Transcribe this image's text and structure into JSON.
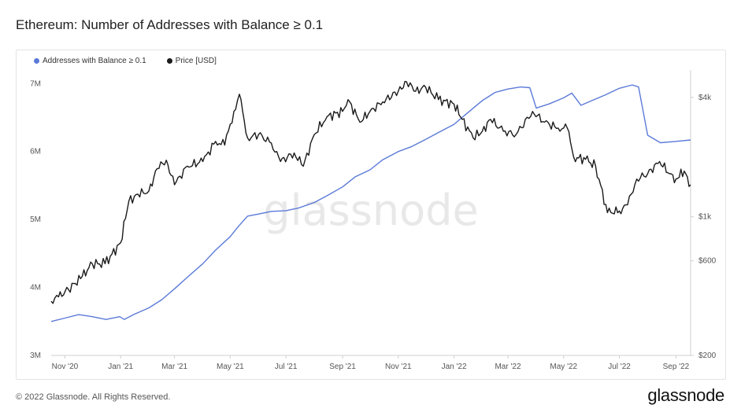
{
  "page": {
    "title": "Ethereum: Number of Addresses with Balance ≥ 0.1",
    "copyright": "© 2022 Glassnode. All Rights Reserved.",
    "brand": "glassnode",
    "watermark": "glassnode"
  },
  "colors": {
    "addresses": "#5b7ad8",
    "price": "#1b1b1b"
  },
  "chart_data": {
    "type": "line",
    "title": "Ethereum: Number of Addresses with Balance ≥ 0.1",
    "legend_placement": "top-left",
    "grid": false,
    "x_ticks": [
      "Nov '20",
      "Jan '21",
      "Mar '21",
      "May '21",
      "Jul '21",
      "Sep '21",
      "Nov '21",
      "Jan '22",
      "Mar '22",
      "May '22",
      "Jul '22",
      "Sep '22"
    ],
    "xlim": [
      "2020-10-17",
      "2022-09-17"
    ],
    "y_left": {
      "ticks": [
        "3M",
        "4M",
        "5M",
        "6M",
        "7M"
      ],
      "lim": [
        3000000,
        7200000
      ]
    },
    "y_right": {
      "scale": "log",
      "ticks": [
        "$200",
        "$600",
        "$1k",
        "$4k"
      ],
      "lim": [
        200,
        5500
      ]
    },
    "series": [
      {
        "name": "Addresses with Balance ≥ 0.1",
        "axis": "left",
        "x": [
          "2020-10-17",
          "2020-11-01",
          "2020-11-16",
          "2020-12-01",
          "2020-12-16",
          "2020-12-31",
          "2021-01-05",
          "2021-01-15",
          "2021-02-01",
          "2021-02-15",
          "2021-03-01",
          "2021-03-15",
          "2021-04-01",
          "2021-04-15",
          "2021-05-01",
          "2021-05-10",
          "2021-05-20",
          "2021-06-01",
          "2021-06-15",
          "2021-07-01",
          "2021-07-15",
          "2021-08-01",
          "2021-08-15",
          "2021-09-01",
          "2021-09-15",
          "2021-10-01",
          "2021-10-15",
          "2021-11-01",
          "2021-11-15",
          "2021-12-01",
          "2021-12-15",
          "2022-01-01",
          "2022-01-15",
          "2022-02-01",
          "2022-02-15",
          "2022-03-01",
          "2022-03-15",
          "2022-03-25",
          "2022-04-01",
          "2022-04-15",
          "2022-05-01",
          "2022-05-10",
          "2022-05-20",
          "2022-06-01",
          "2022-06-15",
          "2022-07-01",
          "2022-07-15",
          "2022-07-22",
          "2022-08-01",
          "2022-08-15",
          "2022-09-01",
          "2022-09-17"
        ],
        "values": [
          3500000,
          3550000,
          3600000,
          3570000,
          3530000,
          3570000,
          3530000,
          3600000,
          3700000,
          3820000,
          3980000,
          4150000,
          4350000,
          4550000,
          4750000,
          4900000,
          5050000,
          5080000,
          5120000,
          5130000,
          5170000,
          5250000,
          5350000,
          5480000,
          5630000,
          5730000,
          5880000,
          6000000,
          6070000,
          6180000,
          6280000,
          6400000,
          6560000,
          6750000,
          6870000,
          6920000,
          6950000,
          6940000,
          6640000,
          6700000,
          6790000,
          6860000,
          6680000,
          6750000,
          6830000,
          6930000,
          6980000,
          6950000,
          6240000,
          6130000,
          6150000,
          6170000
        ]
      },
      {
        "name": "Price [USD]",
        "axis": "right",
        "x": [
          "2020-10-17",
          "2020-10-25",
          "2020-11-05",
          "2020-11-20",
          "2020-12-01",
          "2020-12-15",
          "2021-01-01",
          "2021-01-10",
          "2021-01-20",
          "2021-02-01",
          "2021-02-10",
          "2021-02-20",
          "2021-03-01",
          "2021-03-15",
          "2021-04-01",
          "2021-04-15",
          "2021-04-25",
          "2021-05-05",
          "2021-05-11",
          "2021-05-20",
          "2021-06-01",
          "2021-06-15",
          "2021-06-25",
          "2021-07-10",
          "2021-07-20",
          "2021-08-01",
          "2021-08-15",
          "2021-09-01",
          "2021-09-07",
          "2021-09-20",
          "2021-10-01",
          "2021-10-15",
          "2021-11-01",
          "2021-11-10",
          "2021-11-20",
          "2021-12-01",
          "2021-12-15",
          "2022-01-01",
          "2022-01-10",
          "2022-01-22",
          "2022-02-01",
          "2022-02-10",
          "2022-02-24",
          "2022-03-10",
          "2022-03-28",
          "2022-04-10",
          "2022-04-25",
          "2022-05-05",
          "2022-05-12",
          "2022-05-25",
          "2022-06-05",
          "2022-06-18",
          "2022-07-01",
          "2022-07-10",
          "2022-07-20",
          "2022-08-01",
          "2022-08-14",
          "2022-08-25",
          "2022-09-01",
          "2022-09-10",
          "2022-09-17"
        ],
        "values": [
          375,
          395,
          430,
          500,
          580,
          580,
          740,
          1200,
          1300,
          1350,
          1750,
          1930,
          1450,
          1800,
          1900,
          2400,
          2300,
          3400,
          4150,
          2500,
          2600,
          2350,
          1900,
          2100,
          1800,
          2600,
          3200,
          3400,
          3900,
          3000,
          3400,
          3800,
          4300,
          4800,
          4300,
          4500,
          3900,
          3700,
          3100,
          2500,
          2700,
          3100,
          2700,
          2600,
          3400,
          3000,
          2800,
          2800,
          2000,
          1950,
          1800,
          1050,
          1070,
          1150,
          1550,
          1650,
          1900,
          1650,
          1550,
          1700,
          1450
        ]
      }
    ]
  }
}
